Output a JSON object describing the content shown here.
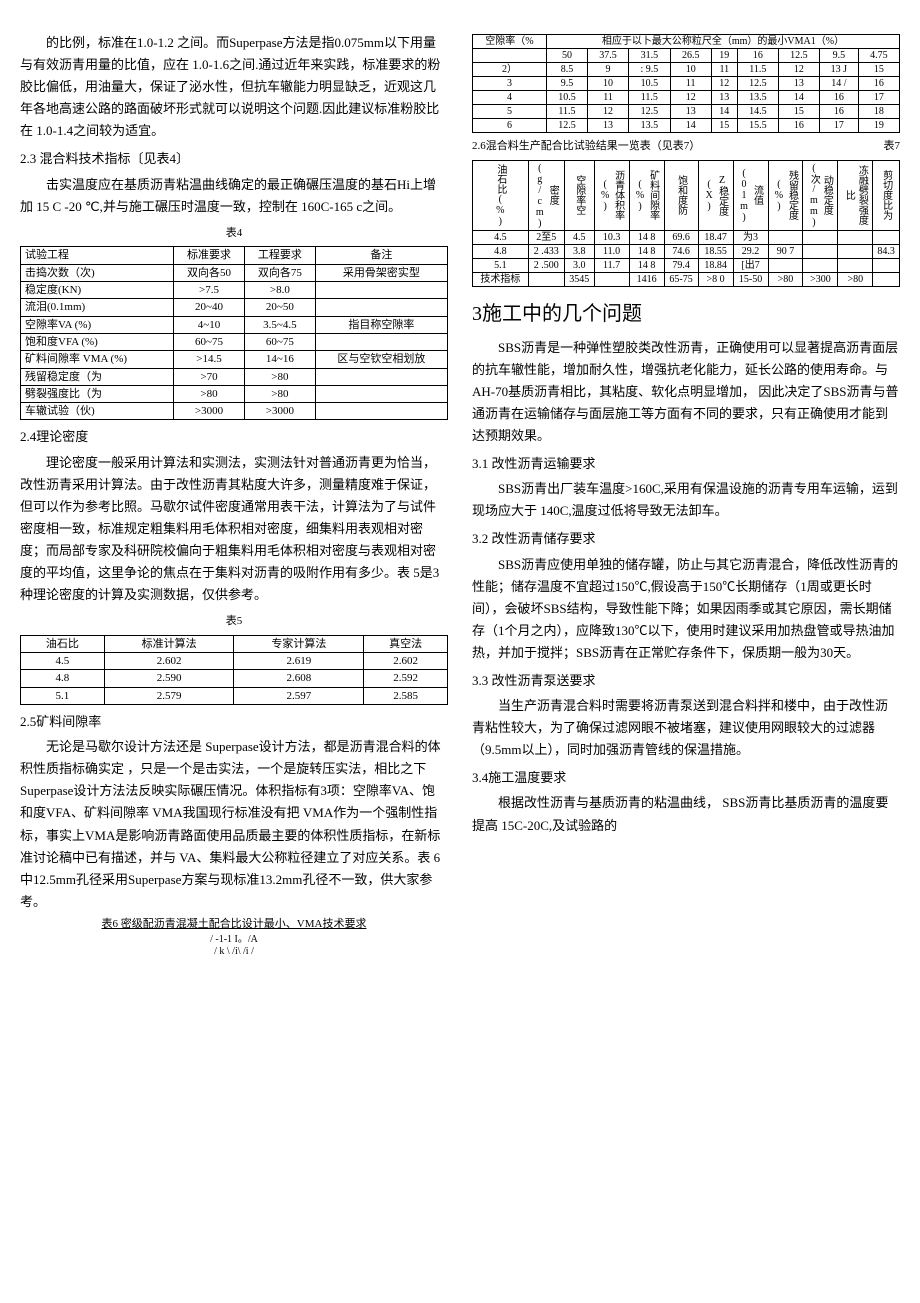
{
  "left": {
    "p1": "的比例，标准在1.0-1.2 之间。而Superpase方法是指0.075mm以下用量与有效沥青用量的比值，应在 1.0-1.6之间.通过近年来实践，标准要求的粉胶比偏低，用油量大，保证了泌水性，但抗车辙能力明显缺乏，近观这几年各地高速公路的路面破坏形式就可以说明这个问题.因此建议标准粉胶比在 1.0-1.4之间较为适宜。",
    "s23": "2.3 混合料技术指标〔见表4〕",
    "p2": "击实温度应在基质沥青粘温曲线确定的最正确碾压温度的基石Hi上增加 15 C -20 ℃,并与施工碾压时温度一致，控制在 160C-165 c之间。",
    "t4cap": "表4",
    "t4": {
      "h": [
        "试验工程",
        "标准要求",
        "工程要求",
        "备注"
      ],
      "r": [
        [
          "击捣次数（次)",
          "双向各50",
          "双向各75",
          "采用骨架密实型"
        ],
        [
          "稳定度(KN)",
          ">7.5",
          ">8.0",
          ""
        ],
        [
          "流泪(0.1mm)",
          "20~40",
          "20~50",
          ""
        ],
        [
          "空隙率VA  (%)",
          "4~10",
          "3.5~4.5",
          "指目称空隙率"
        ],
        [
          "饱和度VFA (%)",
          "60~75",
          "60~75",
          ""
        ],
        [
          "矿料间隙率 VMA  (%)",
          ">14.5",
          "14~16",
          "区与空钦空相划放"
        ],
        [
          "残留稳定度（为",
          ">70",
          ">80",
          ""
        ],
        [
          "劈裂强度比（为",
          ">80",
          ">80",
          ""
        ],
        [
          "车辙试验（伙)",
          ">3000",
          ">3000",
          ""
        ]
      ]
    },
    "s24": "2.4理论密度",
    "p3": "理论密度一般采用计算法和实测法，实测法针对普通沥青更为恰当，改性沥青采用计算法。由于改性沥青其粘度大许多，测量精度难于保证，但可以作为参考比照。马歇尔试件密度通常用表干法，计算法为了与试件密度相一致，标准规定粗集料用毛体积相对密度，细集料用表观相对密度；而局部专家及科研院校偏向于粗集料用毛体积相对密度与表观相对密度的平均值，这里争论的焦点在于集料对沥青的吸附作用有多少。表      5是3种理论密度的计算及实测数据，仅供参考。",
    "t5cap": "表5",
    "t5": {
      "h": [
        "油石比",
        "标准计算法",
        "专家计算法",
        "真空法"
      ],
      "r": [
        [
          "4.5",
          "2.602",
          "2.619",
          "2.602"
        ],
        [
          "4.8",
          "2.590",
          "2.608",
          "2.592"
        ],
        [
          "5.1",
          "2.579",
          "2.597",
          "2.585"
        ]
      ]
    },
    "s25": "2.5矿料间隙率",
    "p4": "无论是马歇尔设计方法还是   Superpase设计方法，都是沥青混合料的体积性质指标确实定    ，只是一个是击实法，一个是旋转压实法，相比之下Superpase设计方法法反映实际碾压情况。体积指标有3项：空隙率VA、饱和度VFA、矿料间隙率 VMA我国现行标准没有把   VMA作为一个强制性指标，事实上VMA是影响沥青路面使用品质最主要的体积性质指标，在新标准讨论稿中已有描述，并与    VA、集料最大公称粒径建立了对应关系。表    6中12.5mm孔径采用Superpase方案与现标准13.2mm孔径不一致，供大家参考。",
    "t6cap": "表6 密级配沥青混凝土配合比设计最小、VMA技术要求"
  },
  "right": {
    "t6": {
      "h1": [
        "空隙率（%",
        "相应于以卜最大公称粒尺全（mm）的最小VMA1（%）"
      ],
      "h2": [
        "",
        "50",
        "37.5",
        "31.5",
        "26.5",
        "19",
        "16",
        "12.5",
        "9.5",
        "4.75"
      ],
      "r": [
        [
          "2）",
          "8.5",
          "9",
          ": 9.5",
          "10",
          "11",
          "11.5",
          "12",
          "13 J",
          "15"
        ],
        [
          "3",
          "9.5",
          "10",
          "10.5",
          "11",
          "12",
          "12.5",
          "13",
          "14 /",
          "16"
        ],
        [
          "4",
          "10.5",
          "11",
          "11.5",
          "12",
          "13",
          "13.5",
          "14",
          "16",
          "17"
        ],
        [
          "5",
          "11.5",
          "12",
          "12.5",
          "13",
          "14",
          "14.5",
          "15",
          "16",
          "18"
        ],
        [
          "6",
          "12.5",
          "13",
          "13.5",
          "14",
          "15",
          "15.5",
          "16",
          "17",
          "19"
        ]
      ]
    },
    "t7cap_l": "2.6混合料生产配合比试验结果一览表（见表7）",
    "t7cap_r": "表7",
    "t7": {
      "h": [
        "油石比(%)",
        "密度(g/cm)",
        "空隙率空",
        "沥青体积率(%)",
        "矿料间隙率(%)",
        "饱和度防",
        "Z稳定度(X)",
        "流值(01m)",
        "残留稳定度(%)",
        "动稳定度(次/mm)",
        "冻融劈裂强度比",
        "剪切度比为"
      ],
      "r": [
        [
          "4.5",
          "2至5",
          "4.5",
          "10.3",
          "14 8",
          "69.6",
          "18.47",
          "为3",
          "",
          "",
          "",
          ""
        ],
        [
          "4.8",
          "2 .433",
          "3.8",
          "11.0",
          "14 8",
          "74.6",
          "18.55",
          "29.2",
          "90 7",
          "",
          "",
          "84.3"
        ],
        [
          "5.1",
          "2 .500",
          "3.0",
          "11.7",
          "14 8",
          "79.4",
          "18.84",
          "[出7",
          "",
          "",
          "",
          ""
        ],
        [
          "技术指标",
          "",
          "3545",
          "",
          "1416",
          "65-75",
          ">8 0",
          "15-50",
          ">80",
          ">300",
          ">80",
          ""
        ]
      ]
    },
    "h2": "3施工中的几个问题",
    "p1": "SBS沥青是一种弹性塑胶类改性沥青，正确使用可以显著提高沥青面层的抗车辙性能，增加耐久性，增强抗老化能力，延长公路的使用寿命。与 AH-70基质沥青相比，其粘度、软化点明显增加， 因此决定了SBS沥青与普通沥青在运输储存与面层施工等方面有不同的要求，只有正确使用才能到达预期效果。",
    "s31": "3.1 改性沥青运输要求",
    "p31": "SBS沥青出厂装车温度>160C,采用有保温设施的沥青专用车运输，运到现场应大于 140C,温度过低将导致无法卸车。",
    "s32": "3.2 改性沥青储存要求",
    "p32": "SBS沥青应使用单独的储存罐，防止与其它沥青混合，降低改性沥青的性能；储存温度不宜超过150℃,假设高于150℃长期储存（1周或更长时间），会破坏SBS结构，导致性能下降；如果因雨季或其它原因，需长期储存（1个月之内），应降致130℃以下，使用时建议采用加热盘管或导热油加热，并加于搅拌；SBS沥青在正常贮存条件下，保质期一般为30天。",
    "s33": "3.3 改性沥青泵送要求",
    "p33": "当生产沥青混合料时需要将沥青泵送到混合料拌和楼中，由于改性沥青粘性较大，为了确保过滤网眼不被堵塞，建议使用网眼较大的过滤器（9.5mm以上），同时加强沥青管线的保温措施。",
    "s34": "3.4施工温度要求",
    "p34": "根据改性沥青与基质沥青的粘温曲线，     SBS沥青比基质沥青的温度要提高    15C-20C,及试验路的"
  }
}
